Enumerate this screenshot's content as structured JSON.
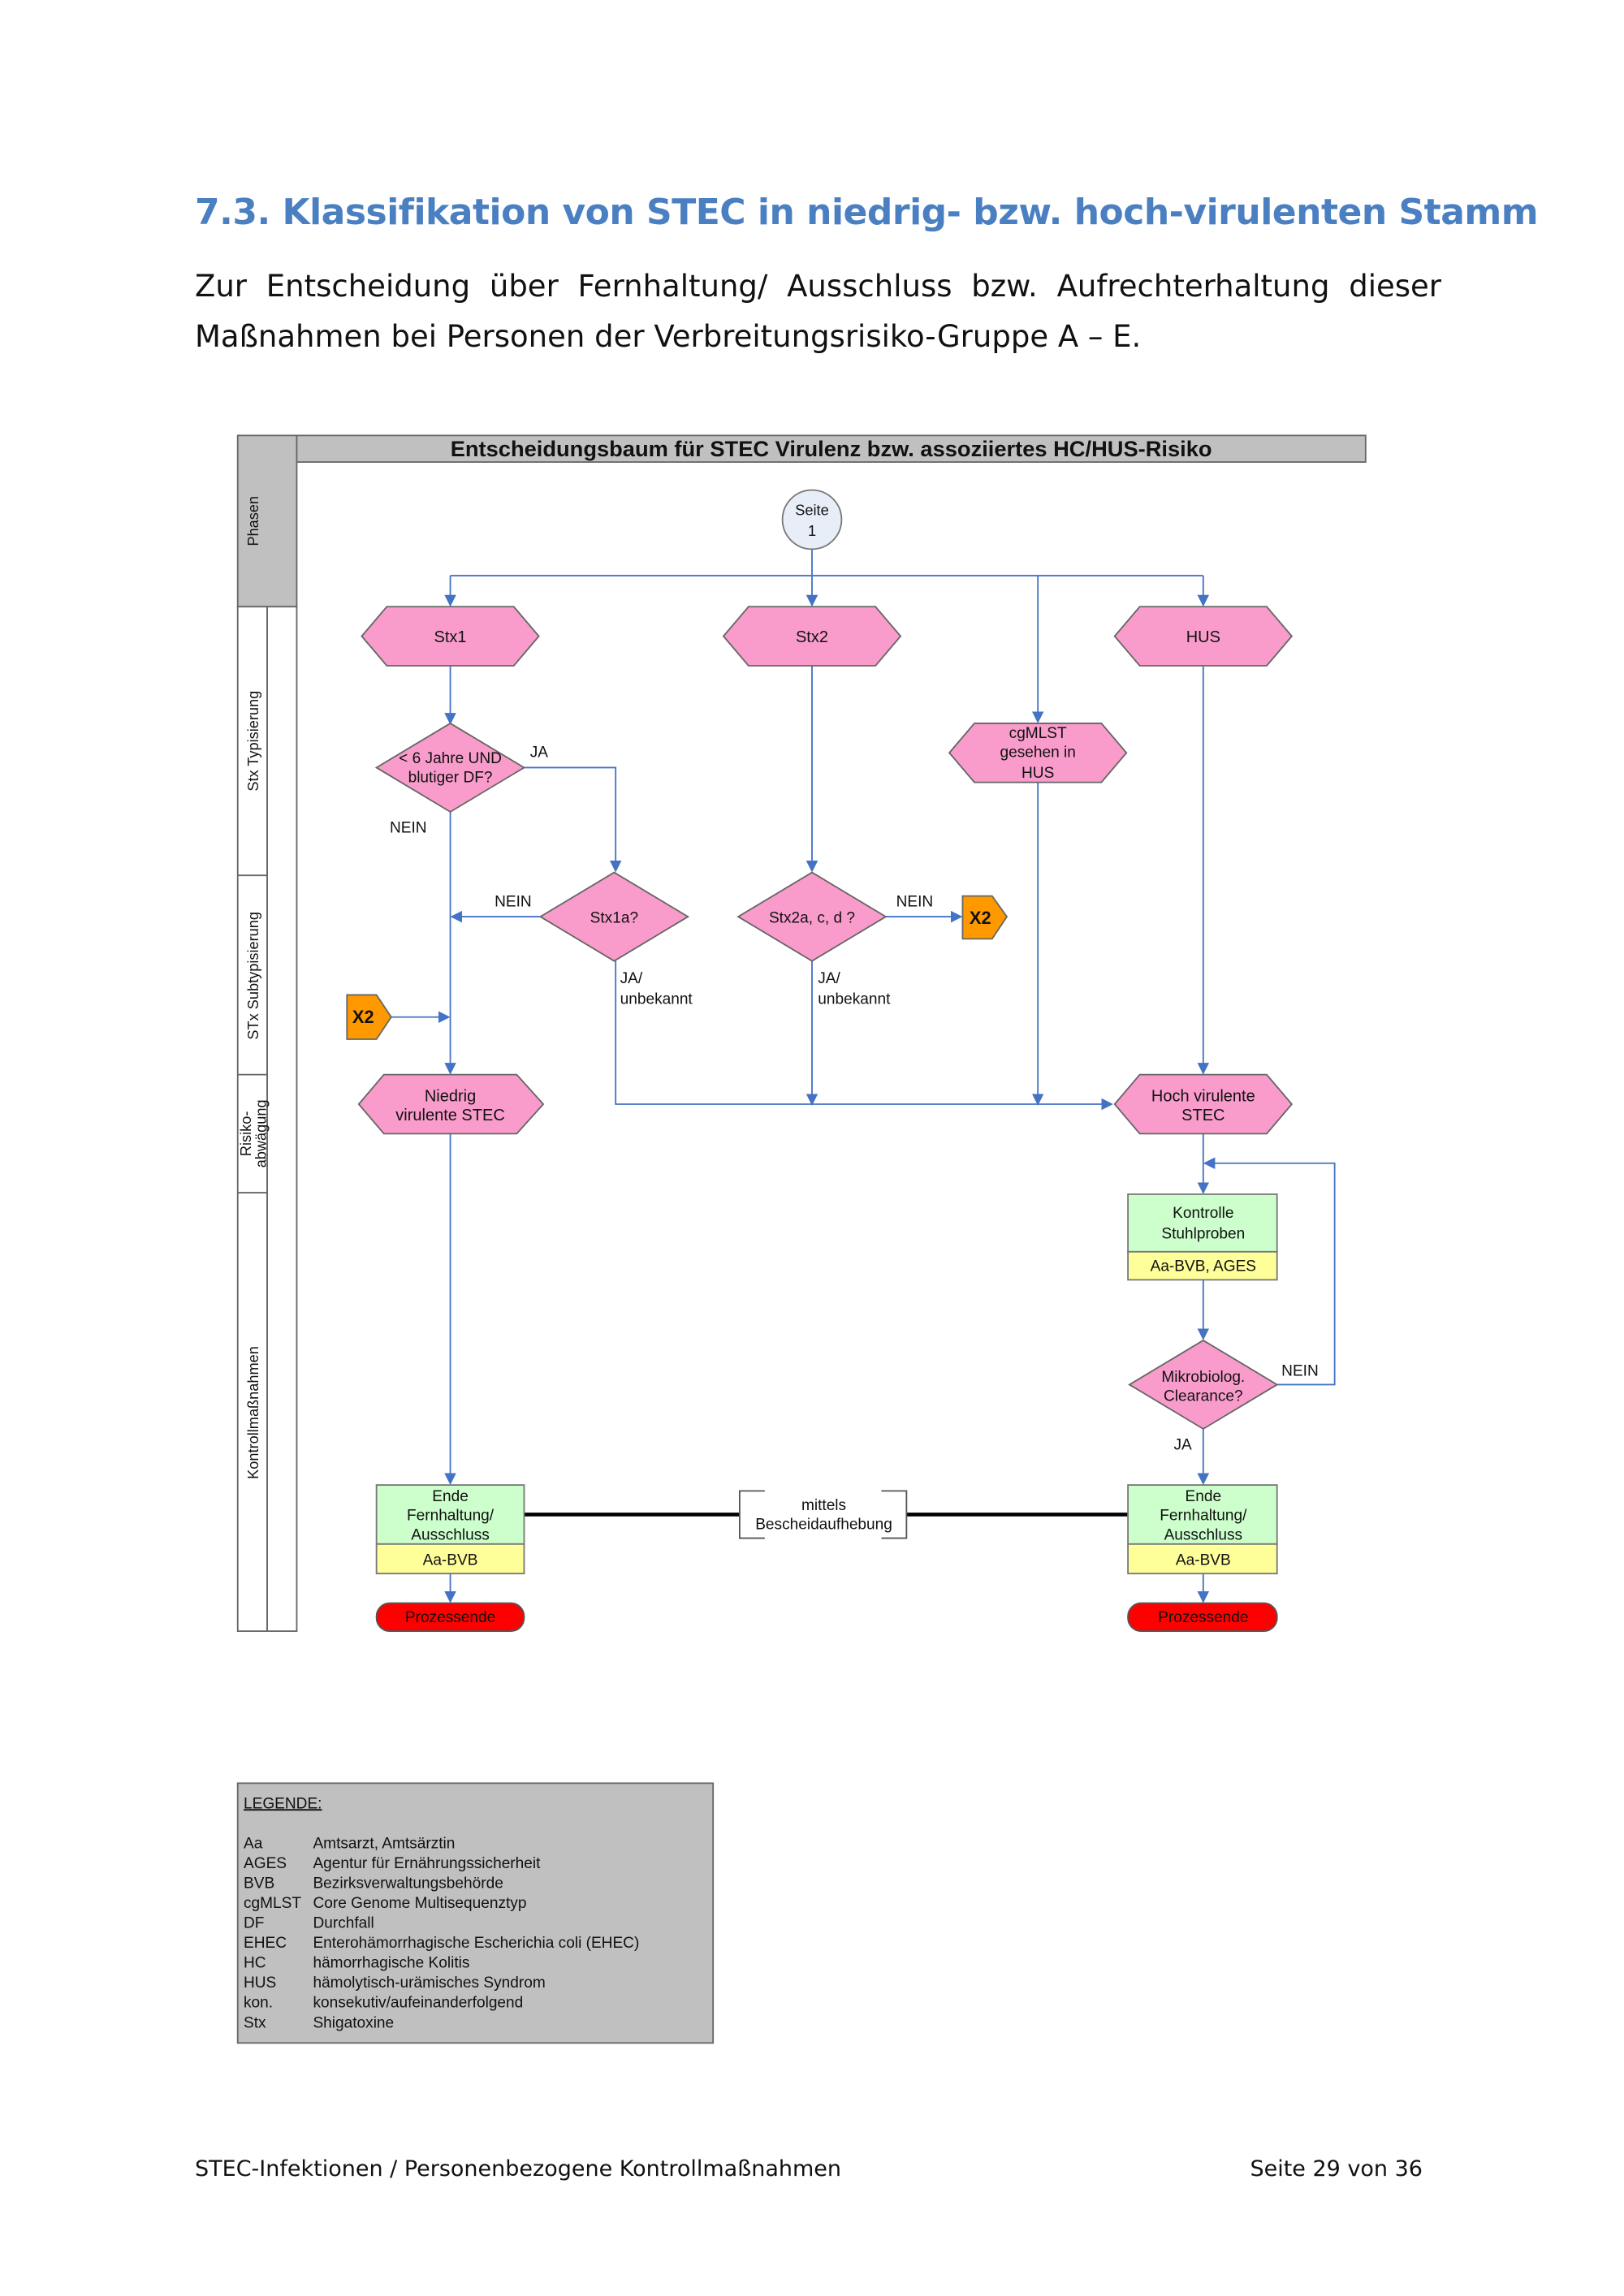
{
  "heading": "7.3.  Klassifikation von STEC in niedrig- bzw. hoch-virulenten Stamm",
  "paragraph": {
    "line1": "Zur Entscheidung über Fernhaltung/ Ausschluss bzw. Aufrechterhaltung dieser",
    "line2": "Maßnahmen bei Personen der Verbreitungsrisiko-Gruppe A – E."
  },
  "diagram": {
    "title": "Entscheidungsbaum für STEC Virulenz bzw. assoziiertes HC/HUS-Risiko",
    "phases": [
      "Phasen",
      "Stx Typisierung",
      "STx Subtypisierung",
      "Risiko-",
      "abwägung",
      "Kontrollmaßnahmen"
    ],
    "start": {
      "line1": "Seite",
      "line2": "1"
    },
    "nodes": {
      "stx1": "Stx1",
      "stx2": "Stx2",
      "hus": "HUS",
      "cgmlst": [
        "cgMLST",
        "gesehen in",
        "HUS"
      ],
      "q_age": [
        "< 6 Jahre UND",
        "blutiger DF?"
      ],
      "q_stx1a": "Stx1a?",
      "q_stx2": "Stx2a, c, d ?",
      "x2": "X2",
      "low": [
        "Niedrig",
        "virulente STEC"
      ],
      "high": [
        "Hoch virulente",
        "STEC"
      ],
      "kontrolle": [
        "Kontrolle",
        "Stuhlproben"
      ],
      "kontrolle_resp": "Aa-BVB, AGES",
      "q_clear": [
        "Mikrobiolog.",
        "Clearance?"
      ],
      "ende": [
        "Ende",
        "Fernhaltung/",
        "Ausschluss"
      ],
      "ende_resp": "Aa-BVB",
      "prozessende": "Prozessende",
      "mittels": [
        "mittels",
        "Bescheidaufhebung"
      ]
    },
    "labels": {
      "ja": "JA",
      "nein": "NEIN",
      "ja_unbekannt": [
        "JA/",
        "unbekannt"
      ]
    },
    "colors": {
      "pink": "#f99ccb",
      "orange": "#ff9900",
      "green": "#ccffcc",
      "yellow": "#ffff99",
      "red": "#ff0000",
      "arrow": "#4472c4",
      "grey": "#c0c0c0"
    }
  },
  "legend": {
    "title": "LEGENDE:",
    "items": [
      {
        "abbr": "Aa",
        "text": "Amtsarzt, Amtsärztin"
      },
      {
        "abbr": "AGES",
        "text": "Agentur für Ernährungssicherheit"
      },
      {
        "abbr": "BVB",
        "text": "Bezirksverwaltungsbehörde"
      },
      {
        "abbr": "cgMLST",
        "text": "Core Genome Multisequenztyp"
      },
      {
        "abbr": "DF",
        "text": "Durchfall"
      },
      {
        "abbr": "EHEC",
        "text": "Enterohämorrhagische Escherichia coli (EHEC)"
      },
      {
        "abbr": "HC",
        "text": "hämorrhagische Kolitis"
      },
      {
        "abbr": "HUS",
        "text": "hämolytisch-urämisches Syndrom"
      },
      {
        "abbr": "kon.",
        "text": "konsekutiv/aufeinanderfolgend"
      },
      {
        "abbr": "Stx",
        "text": "Shigatoxine"
      }
    ]
  },
  "footer": {
    "left": "STEC-Infektionen / Personenbezogene Kontrollmaßnahmen",
    "right": "Seite 29 von 36"
  }
}
